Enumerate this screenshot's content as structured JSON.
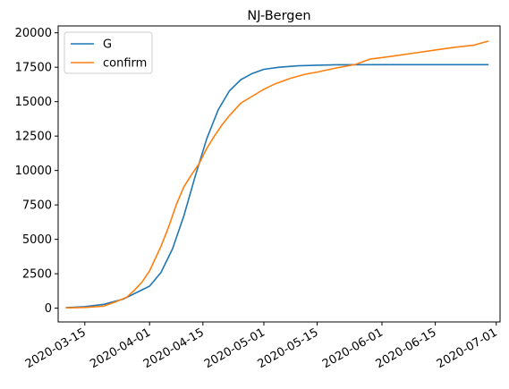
{
  "chart_data": {
    "type": "line",
    "title": "NJ-Bergen",
    "xlabel": "",
    "ylabel": "",
    "x_axis": {
      "kind": "date",
      "range": [
        "2020-03-08",
        "2020-07-02"
      ],
      "ticks": [
        "2020-03-15",
        "2020-04-01",
        "2020-04-15",
        "2020-05-01",
        "2020-05-15",
        "2020-06-01",
        "2020-06-15",
        "2020-07-01"
      ],
      "tick_labels": [
        "2020-03-15",
        "2020-04-01",
        "2020-04-15",
        "2020-05-01",
        "2020-05-15",
        "2020-06-01",
        "2020-06-15",
        "2020-07-01"
      ]
    },
    "ylim": [
      -1000,
      20500
    ],
    "yticks": [
      0,
      2500,
      5000,
      7500,
      10000,
      12500,
      15000,
      17500,
      20000
    ],
    "ytick_labels": [
      "0",
      "2500",
      "5000",
      "7500",
      "10000",
      "12500",
      "15000",
      "17500",
      "20000"
    ],
    "grid": false,
    "legend": {
      "placement": "top-left"
    },
    "series": [
      {
        "name": "G",
        "color": "#1f77b4",
        "x": [
          "2020-03-10",
          "2020-03-15",
          "2020-03-20",
          "2020-03-25",
          "2020-03-28",
          "2020-04-01",
          "2020-04-04",
          "2020-04-07",
          "2020-04-10",
          "2020-04-13",
          "2020-04-16",
          "2020-04-19",
          "2020-04-22",
          "2020-04-25",
          "2020-04-28",
          "2020-05-01",
          "2020-05-05",
          "2020-05-10",
          "2020-05-15",
          "2020-05-20",
          "2020-06-01",
          "2020-06-15",
          "2020-06-29"
        ],
        "values": [
          40,
          110,
          280,
          650,
          1050,
          1600,
          2600,
          4300,
          6700,
          9600,
          12300,
          14400,
          15800,
          16600,
          17050,
          17350,
          17500,
          17600,
          17650,
          17680,
          17690,
          17690,
          17690
        ]
      },
      {
        "name": "confirm",
        "color": "#ff7f0e",
        "x": [
          "2020-03-10",
          "2020-03-15",
          "2020-03-20",
          "2020-03-23",
          "2020-03-26",
          "2020-03-28",
          "2020-03-30",
          "2020-04-01",
          "2020-04-04",
          "2020-04-06",
          "2020-04-08",
          "2020-04-10",
          "2020-04-12",
          "2020-04-14",
          "2020-04-16",
          "2020-04-18",
          "2020-04-20",
          "2020-04-22",
          "2020-04-25",
          "2020-04-28",
          "2020-05-01",
          "2020-05-04",
          "2020-05-08",
          "2020-05-12",
          "2020-05-15",
          "2020-05-20",
          "2020-05-25",
          "2020-05-29",
          "2020-06-01",
          "2020-06-05",
          "2020-06-10",
          "2020-06-15",
          "2020-06-20",
          "2020-06-25",
          "2020-06-29"
        ],
        "values": [
          20,
          50,
          150,
          450,
          800,
          1300,
          1900,
          2700,
          4500,
          5900,
          7500,
          8800,
          9700,
          10500,
          11600,
          12500,
          13300,
          14000,
          14900,
          15400,
          15900,
          16300,
          16700,
          17000,
          17150,
          17450,
          17700,
          18100,
          18200,
          18350,
          18550,
          18750,
          18950,
          19100,
          19400
        ]
      }
    ]
  }
}
